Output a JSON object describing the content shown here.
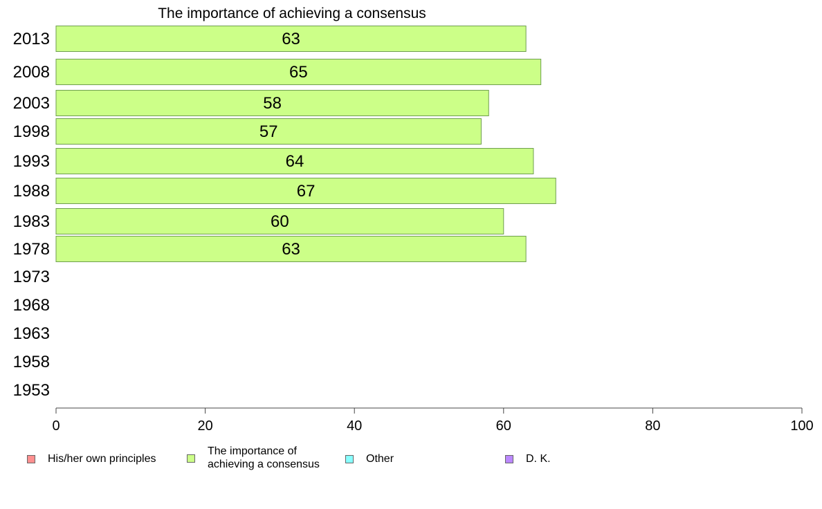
{
  "chart_data": {
    "type": "bar",
    "orientation": "horizontal",
    "title": "The importance of achieving a consensus",
    "categories": [
      "2013",
      "2008",
      "2003",
      "1998",
      "1993",
      "1988",
      "1983",
      "1978",
      "1973",
      "1968",
      "1963",
      "1958",
      "1953"
    ],
    "series": [
      {
        "name": "The importance of achieving a consensus",
        "values": [
          63,
          65,
          58,
          57,
          64,
          67,
          60,
          63,
          null,
          null,
          null,
          null,
          null
        ],
        "color": "#ccff88"
      }
    ],
    "xlim": [
      0,
      100
    ],
    "xticks": [
      0,
      20,
      40,
      60,
      80,
      100
    ],
    "grid": false,
    "legend_placement": "bottom",
    "legend": [
      {
        "label": "His/her own principles",
        "color": "#ff8f8f"
      },
      {
        "label": "The importance of\nachieving a consensus",
        "color": "#ccff88"
      },
      {
        "label": "Other",
        "color": "#88ffff"
      },
      {
        "label": "D. K.",
        "color": "#bb88ff"
      }
    ]
  }
}
